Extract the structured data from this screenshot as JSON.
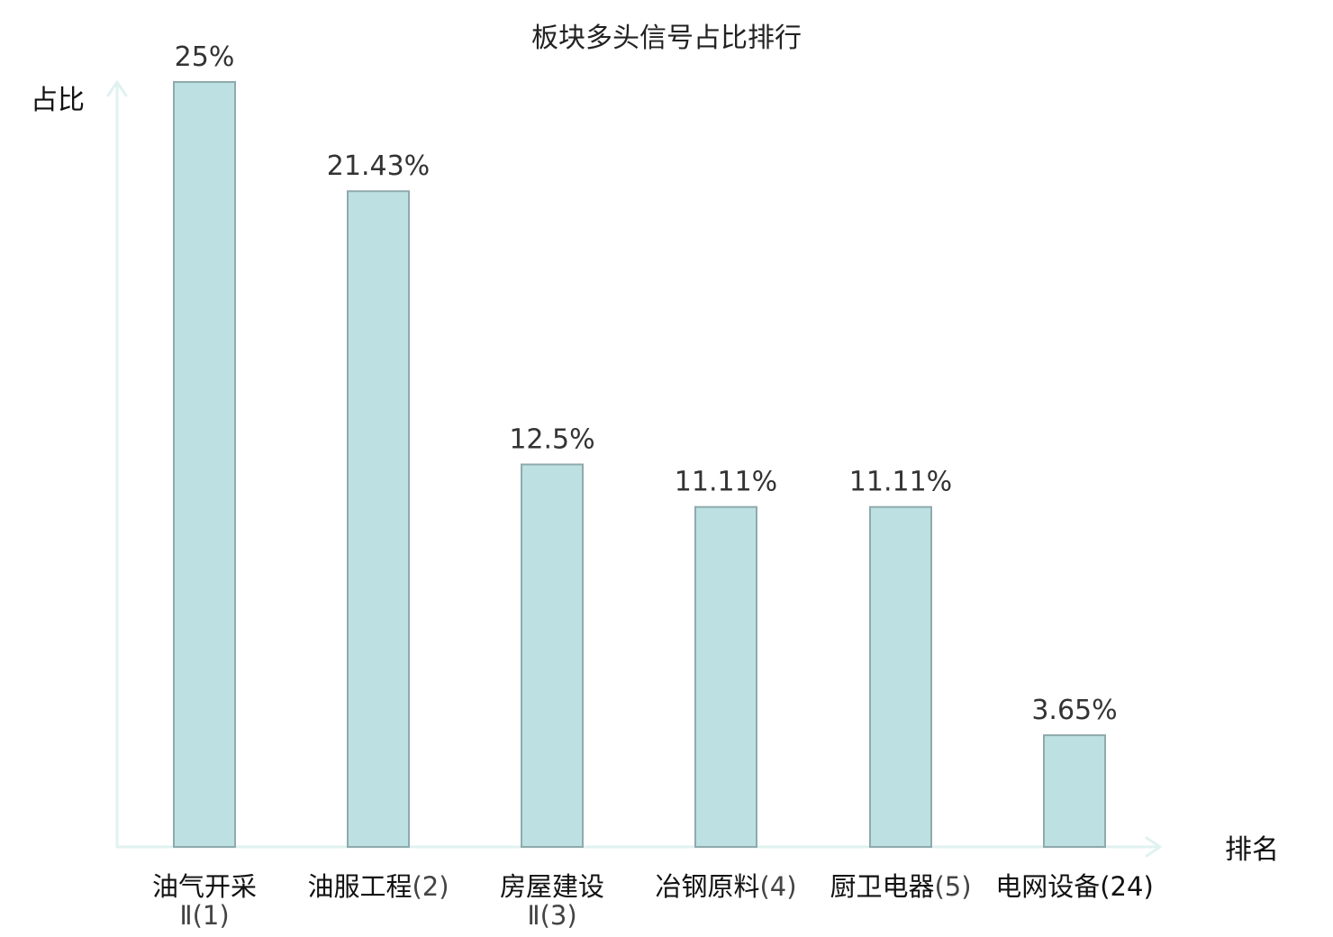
{
  "chart_data": {
    "type": "bar",
    "title": "板块多头信号占比排行",
    "xlabel": "排名",
    "ylabel": "占比",
    "ylim": [
      0,
      25
    ],
    "grid": false,
    "legend": "none",
    "categories": [
      {
        "name": "油气开采Ⅱ",
        "rank": "(1)",
        "highlight": false
      },
      {
        "name": "油服工程",
        "rank": "(2)",
        "highlight": false
      },
      {
        "name": "房屋建设Ⅱ",
        "rank": "(3)",
        "highlight": false
      },
      {
        "name": "冶钢原料",
        "rank": "(4)",
        "highlight": false
      },
      {
        "name": "厨卫电器",
        "rank": "(5)",
        "highlight": false
      },
      {
        "name": "电网设备",
        "rank": "(24)",
        "highlight": true
      }
    ],
    "values": [
      25,
      21.43,
      12.5,
      11.11,
      11.11,
      3.65
    ],
    "labels": [
      "25%",
      "21.43%",
      "12.5%",
      "11.11%",
      "11.11%",
      "3.65%"
    ],
    "colors": {
      "bar_fill": "#bde0e2",
      "bar_stroke": "#8faaac",
      "axis": "#e0f2f0",
      "highlight": "#e02020"
    }
  }
}
